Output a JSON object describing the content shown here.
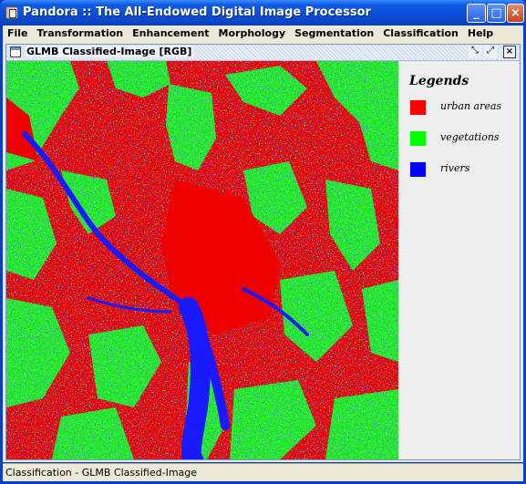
{
  "window": {
    "title": "Pandora :: The All-Endowed Digital Image Processor"
  },
  "menu": [
    "File",
    "Transformation",
    "Enhancement",
    "Morphology",
    "Segmentation",
    "Classification",
    "Help"
  ],
  "internal_frame": {
    "title": "GLMB Classified-Image [RGB]"
  },
  "legend": {
    "title": "Legends",
    "items": [
      {
        "label": "urban areas",
        "color": "#ff0000"
      },
      {
        "label": "vegetations",
        "color": "#00ff00"
      },
      {
        "label": "rivers",
        "color": "#0000ff"
      }
    ]
  },
  "status": {
    "text": "Classification - GLMB Classified-Image"
  },
  "colors": {
    "urban": "#ee0000",
    "vegetation": "#22f022",
    "river": "#1a1aff"
  }
}
